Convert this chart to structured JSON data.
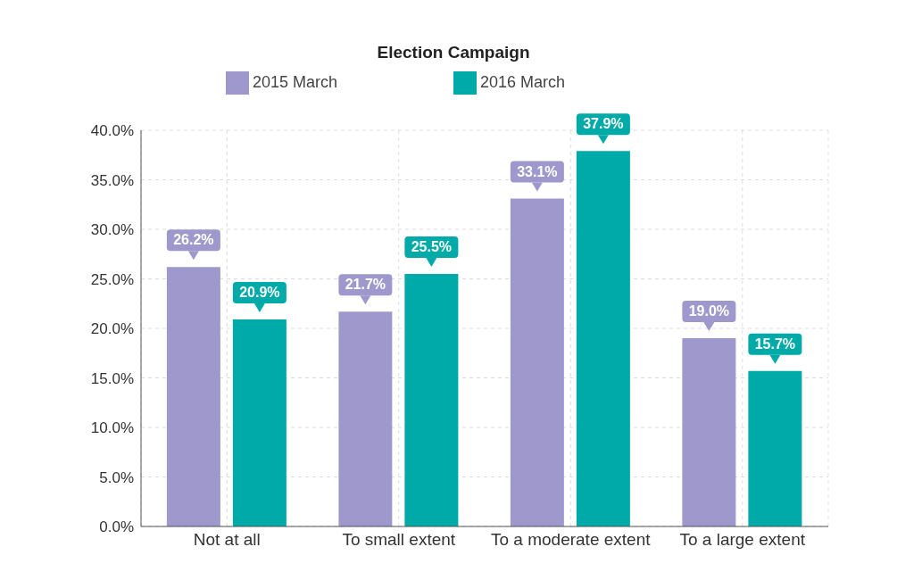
{
  "chart_data": {
    "type": "bar",
    "title": "Election Campaign",
    "categories": [
      "Not at all",
      "To small extent",
      "To a moderate extent",
      "To a large extent"
    ],
    "series": [
      {
        "name": "2015 March",
        "color": "#9f98cc",
        "values": [
          26.2,
          21.7,
          33.1,
          19.0
        ],
        "value_labels": [
          "26.2%",
          "21.7%",
          "33.1%",
          "19.0%"
        ]
      },
      {
        "name": "2016 March",
        "color": "#00aaa8",
        "values": [
          20.9,
          25.5,
          37.9,
          15.7
        ],
        "value_labels": [
          "20.9%",
          "25.5%",
          "37.9%",
          "15.7%"
        ]
      }
    ],
    "ylim": [
      0,
      40
    ],
    "yticks": [
      {
        "value": 0,
        "label": "0.0%"
      },
      {
        "value": 5,
        "label": "5.0%"
      },
      {
        "value": 10,
        "label": "10.0%"
      },
      {
        "value": 15,
        "label": "15.0%"
      },
      {
        "value": 20,
        "label": "20.0%"
      },
      {
        "value": 25,
        "label": "25.0%"
      },
      {
        "value": 30,
        "label": "30.0%"
      },
      {
        "value": 35,
        "label": "35.0%"
      },
      {
        "value": 40,
        "label": "40.0%"
      }
    ],
    "grid": true,
    "legend": "top"
  }
}
